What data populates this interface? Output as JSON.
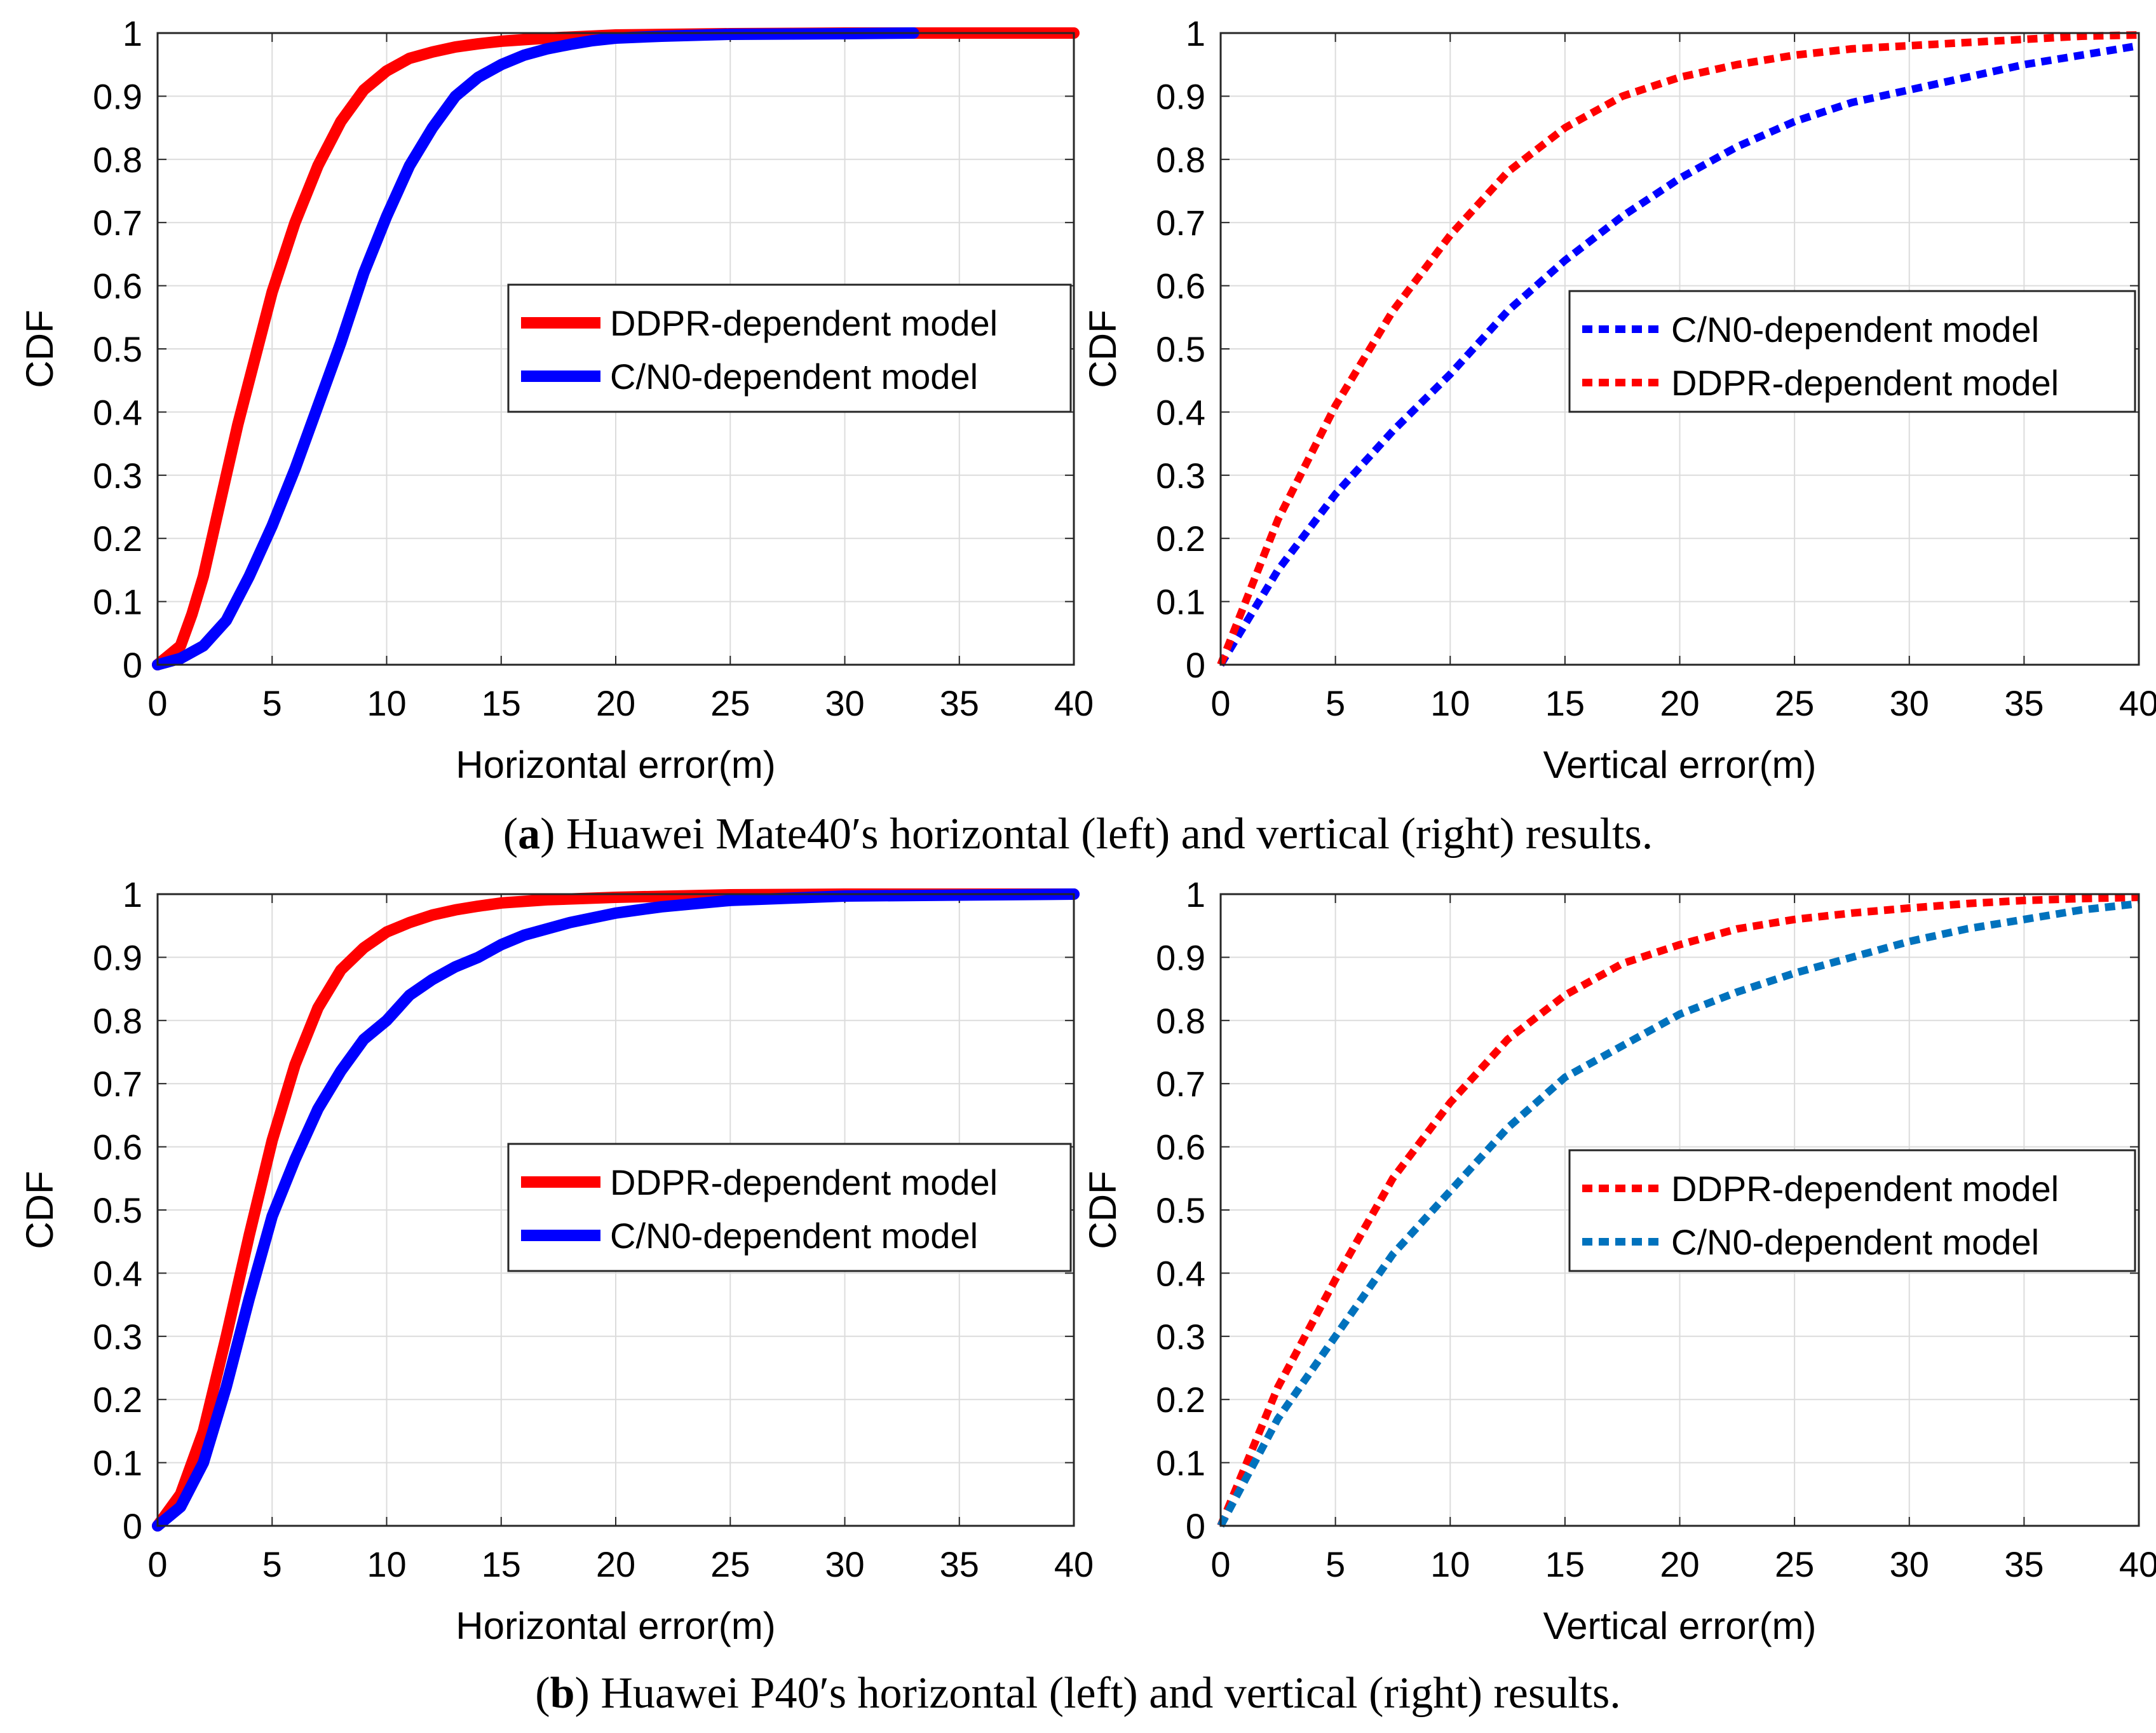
{
  "figure": {
    "caption_a": {
      "letter": "a",
      "open": "(",
      "close": ")",
      "text": " Huawei Mate40′s horizontal (left) and vertical (right) results."
    },
    "caption_b": {
      "letter": "b",
      "open": "(",
      "close": ")",
      "text": " Huawei P40′s horizontal (left) and vertical (right) results."
    }
  },
  "chart_data": [
    {
      "id": "a-left",
      "type": "line",
      "title": "",
      "xlabel": "Horizontal error(m)",
      "ylabel": "CDF",
      "xlim": [
        0,
        40
      ],
      "ylim": [
        0,
        1
      ],
      "xticks": [
        "0",
        "5",
        "10",
        "15",
        "20",
        "25",
        "30",
        "35",
        "40"
      ],
      "yticks": [
        "0",
        "0.1",
        "0.2",
        "0.3",
        "0.4",
        "0.5",
        "0.6",
        "0.7",
        "0.8",
        "0.9",
        "1"
      ],
      "grid": true,
      "legend_position": "center-right",
      "legend": [
        "DDPR-dependent model",
        "C/N0-dependent model"
      ],
      "series": [
        {
          "name": "DDPR-dependent model",
          "color": "#ff0000",
          "style": "solid",
          "x": [
            0,
            1,
            1.5,
            2,
            2.5,
            3,
            3.5,
            4,
            5,
            6,
            7,
            8,
            9,
            10,
            11,
            12,
            13,
            14,
            15,
            17,
            20,
            25,
            30,
            40
          ],
          "y": [
            0,
            0.03,
            0.08,
            0.14,
            0.22,
            0.3,
            0.38,
            0.45,
            0.59,
            0.7,
            0.79,
            0.86,
            0.91,
            0.94,
            0.96,
            0.97,
            0.978,
            0.983,
            0.987,
            0.992,
            0.997,
            0.999,
            1.0,
            1.0
          ]
        },
        {
          "name": "C/N0-dependent model",
          "color": "#0000ff",
          "style": "solid",
          "x": [
            0,
            1,
            2,
            3,
            4,
            5,
            6,
            7,
            8,
            9,
            10,
            11,
            12,
            13,
            14,
            15,
            16,
            17,
            18,
            19,
            20,
            22,
            25,
            30,
            33
          ],
          "y": [
            0,
            0.01,
            0.03,
            0.07,
            0.14,
            0.22,
            0.31,
            0.41,
            0.51,
            0.62,
            0.71,
            0.79,
            0.85,
            0.9,
            0.93,
            0.95,
            0.965,
            0.975,
            0.982,
            0.988,
            0.992,
            0.995,
            0.998,
            0.999,
            1.0
          ]
        }
      ]
    },
    {
      "id": "a-right",
      "type": "line",
      "title": "",
      "xlabel": "Vertical error(m)",
      "ylabel": "CDF",
      "xlim": [
        0,
        40
      ],
      "ylim": [
        0,
        1
      ],
      "xticks": [
        "0",
        "5",
        "10",
        "15",
        "20",
        "25",
        "30",
        "35",
        "40"
      ],
      "yticks": [
        "0",
        "0.1",
        "0.2",
        "0.3",
        "0.4",
        "0.5",
        "0.6",
        "0.7",
        "0.8",
        "0.9",
        "1"
      ],
      "grid": true,
      "legend_position": "center-right",
      "legend": [
        "C/N0-dependent model",
        "DDPR-dependent model"
      ],
      "series": [
        {
          "name": "C/N0-dependent model",
          "color": "#0000ff",
          "style": "dashed",
          "x": [
            0,
            2.5,
            5,
            7.5,
            10,
            12.5,
            15,
            17.5,
            20,
            22.5,
            25,
            27.5,
            30,
            32.5,
            35,
            37.5,
            40
          ],
          "y": [
            0,
            0.15,
            0.27,
            0.37,
            0.46,
            0.56,
            0.64,
            0.71,
            0.77,
            0.82,
            0.86,
            0.89,
            0.91,
            0.93,
            0.95,
            0.965,
            0.98
          ]
        },
        {
          "name": "DDPR-dependent model",
          "color": "#ff0000",
          "style": "dashed",
          "x": [
            0,
            2.5,
            5,
            7.5,
            10,
            12.5,
            15,
            17.5,
            20,
            22.5,
            25,
            27.5,
            30,
            32.5,
            35,
            37.5,
            40
          ],
          "y": [
            0,
            0.23,
            0.41,
            0.56,
            0.68,
            0.78,
            0.85,
            0.9,
            0.93,
            0.95,
            0.965,
            0.975,
            0.98,
            0.985,
            0.99,
            0.995,
            0.997
          ]
        }
      ]
    },
    {
      "id": "b-left",
      "type": "line",
      "title": "",
      "xlabel": "Horizontal error(m)",
      "ylabel": "CDF",
      "xlim": [
        0,
        40
      ],
      "ylim": [
        0,
        1
      ],
      "xticks": [
        "0",
        "5",
        "10",
        "15",
        "20",
        "25",
        "30",
        "35",
        "40"
      ],
      "yticks": [
        "0",
        "0.1",
        "0.2",
        "0.3",
        "0.4",
        "0.5",
        "0.6",
        "0.7",
        "0.8",
        "0.9",
        "1"
      ],
      "grid": true,
      "legend_position": "center-right",
      "legend": [
        "DDPR-dependent model",
        "C/N0-dependent model"
      ],
      "series": [
        {
          "name": "DDPR-dependent model",
          "color": "#ff0000",
          "style": "solid",
          "x": [
            0,
            1,
            2,
            3,
            4,
            5,
            6,
            7,
            8,
            9,
            10,
            11,
            12,
            13,
            14,
            15,
            17,
            20,
            25,
            30,
            40
          ],
          "y": [
            0,
            0.05,
            0.15,
            0.3,
            0.46,
            0.61,
            0.73,
            0.82,
            0.88,
            0.915,
            0.94,
            0.955,
            0.967,
            0.975,
            0.981,
            0.986,
            0.991,
            0.995,
            0.999,
            1.0,
            1.0
          ]
        },
        {
          "name": "C/N0-dependent model",
          "color": "#0000ff",
          "style": "solid",
          "x": [
            0,
            1,
            2,
            3,
            4,
            5,
            6,
            7,
            8,
            9,
            10,
            11,
            12,
            13,
            14,
            15,
            16,
            18,
            20,
            22,
            25,
            30,
            40
          ],
          "y": [
            0,
            0.03,
            0.1,
            0.22,
            0.36,
            0.49,
            0.58,
            0.66,
            0.72,
            0.77,
            0.8,
            0.84,
            0.865,
            0.885,
            0.9,
            0.92,
            0.935,
            0.955,
            0.97,
            0.98,
            0.99,
            0.997,
            1.0
          ]
        }
      ]
    },
    {
      "id": "b-right",
      "type": "line",
      "title": "",
      "xlabel": "Vertical error(m)",
      "ylabel": "CDF",
      "xlim": [
        0,
        40
      ],
      "ylim": [
        0,
        1
      ],
      "xticks": [
        "0",
        "5",
        "10",
        "15",
        "20",
        "25",
        "30",
        "35",
        "40"
      ],
      "yticks": [
        "0",
        "0.1",
        "0.2",
        "0.3",
        "0.4",
        "0.5",
        "0.6",
        "0.7",
        "0.8",
        "0.9",
        "1"
      ],
      "grid": true,
      "legend_position": "center-right",
      "legend": [
        "DDPR-dependent model",
        "C/N0-dependent model"
      ],
      "series": [
        {
          "name": "DDPR-dependent model",
          "color": "#ff0000",
          "style": "dashed",
          "x": [
            0,
            2.5,
            5,
            7.5,
            10,
            12.5,
            15,
            17.5,
            20,
            22.5,
            25,
            27.5,
            30,
            32.5,
            35,
            37.5,
            40
          ],
          "y": [
            0,
            0.22,
            0.39,
            0.55,
            0.67,
            0.77,
            0.84,
            0.89,
            0.92,
            0.945,
            0.96,
            0.97,
            0.978,
            0.985,
            0.99,
            0.993,
            0.995
          ]
        },
        {
          "name": "C/N0-dependent model",
          "color": "#0072bd",
          "style": "dashed",
          "x": [
            0,
            2.5,
            5,
            7.5,
            10,
            12.5,
            15,
            17.5,
            20,
            22.5,
            25,
            27.5,
            30,
            32.5,
            35,
            37.5,
            40
          ],
          "y": [
            0,
            0.17,
            0.3,
            0.43,
            0.53,
            0.63,
            0.71,
            0.76,
            0.81,
            0.845,
            0.875,
            0.9,
            0.925,
            0.945,
            0.96,
            0.975,
            0.985
          ]
        }
      ]
    }
  ]
}
